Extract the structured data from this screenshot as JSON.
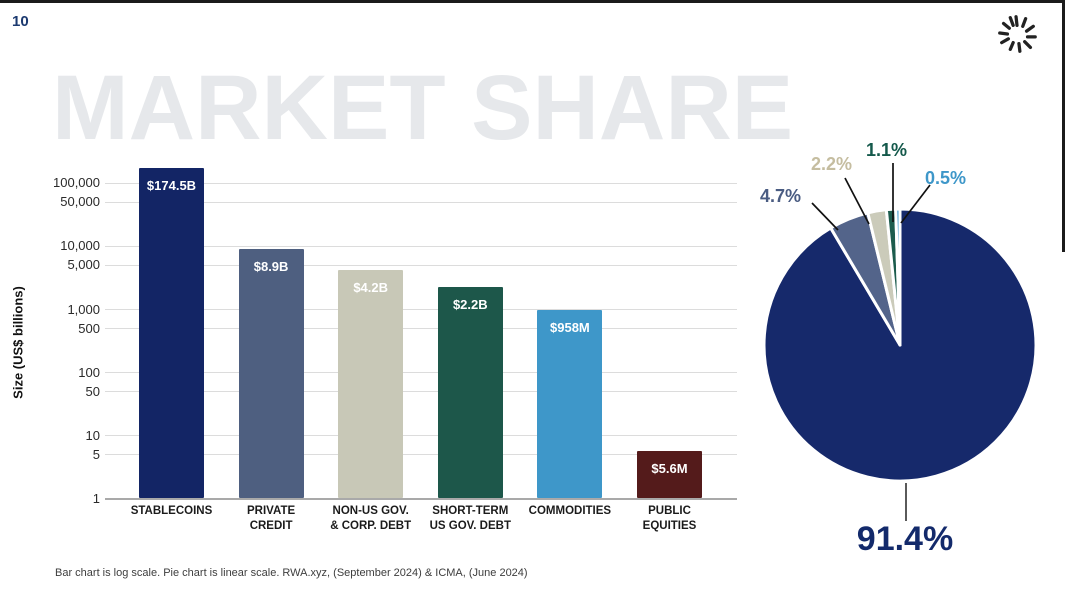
{
  "page": {
    "number": "10"
  },
  "logo": {
    "name": "starburst-logo"
  },
  "watermark": "MARKET SHARE",
  "footer": "Bar chart is log scale. Pie chart is linear scale. RWA.xyz, (September 2024) & ICMA, (June 2024)",
  "chart_data": [
    {
      "type": "bar",
      "scale": "log",
      "title": "",
      "xlabel": "",
      "ylabel": "Size (US$ billions)",
      "grid": true,
      "ylim": [
        1,
        200000
      ],
      "yticks": [
        100000,
        50000,
        10000,
        5000,
        1000,
        500,
        100,
        50,
        10,
        5,
        1
      ],
      "ytick_labels": [
        "100,000",
        "50,000",
        "10,000",
        "5,000",
        "1,000",
        "500",
        "100",
        "50",
        "10",
        "5",
        "1"
      ],
      "categories": [
        "STABLECOINS",
        "PRIVATE\nCREDIT",
        "NON-US GOV.\n& CORP. DEBT",
        "SHORT-TERM\nUS GOV. DEBT",
        "COMMODITIES",
        "PUBLIC\nEQUITIES"
      ],
      "values_axis_units": [
        174500,
        8900,
        4200,
        2200,
        958,
        5.6
      ],
      "value_labels": [
        "$174.5B",
        "$8.9B",
        "$4.2B",
        "$2.2B",
        "$958M",
        "$5.6M"
      ],
      "bar_colors": [
        "#132565",
        "#4e5f80",
        "#c8c8b7",
        "#1d574a",
        "#3e97c9",
        "#541b1b"
      ]
    },
    {
      "type": "pie",
      "direction": "clockwise",
      "start_angle_deg": 0,
      "slices": [
        {
          "label": "91.4%",
          "value": 91.4,
          "color": "#16296b",
          "label_color": "#132a6b"
        },
        {
          "label": "4.7%",
          "value": 4.7,
          "color": "#53648a",
          "label_color": "#4a5c82"
        },
        {
          "label": "2.2%",
          "value": 2.2,
          "color": "#cbcbba",
          "label_color": "#c5bda0"
        },
        {
          "label": "1.1%",
          "value": 1.1,
          "color": "#1c5c4d",
          "label_color": "#14594b"
        },
        {
          "label": "0.5%",
          "value": 0.5,
          "color": "#4aa0d0",
          "label_color": "#3e97c9"
        }
      ]
    }
  ]
}
